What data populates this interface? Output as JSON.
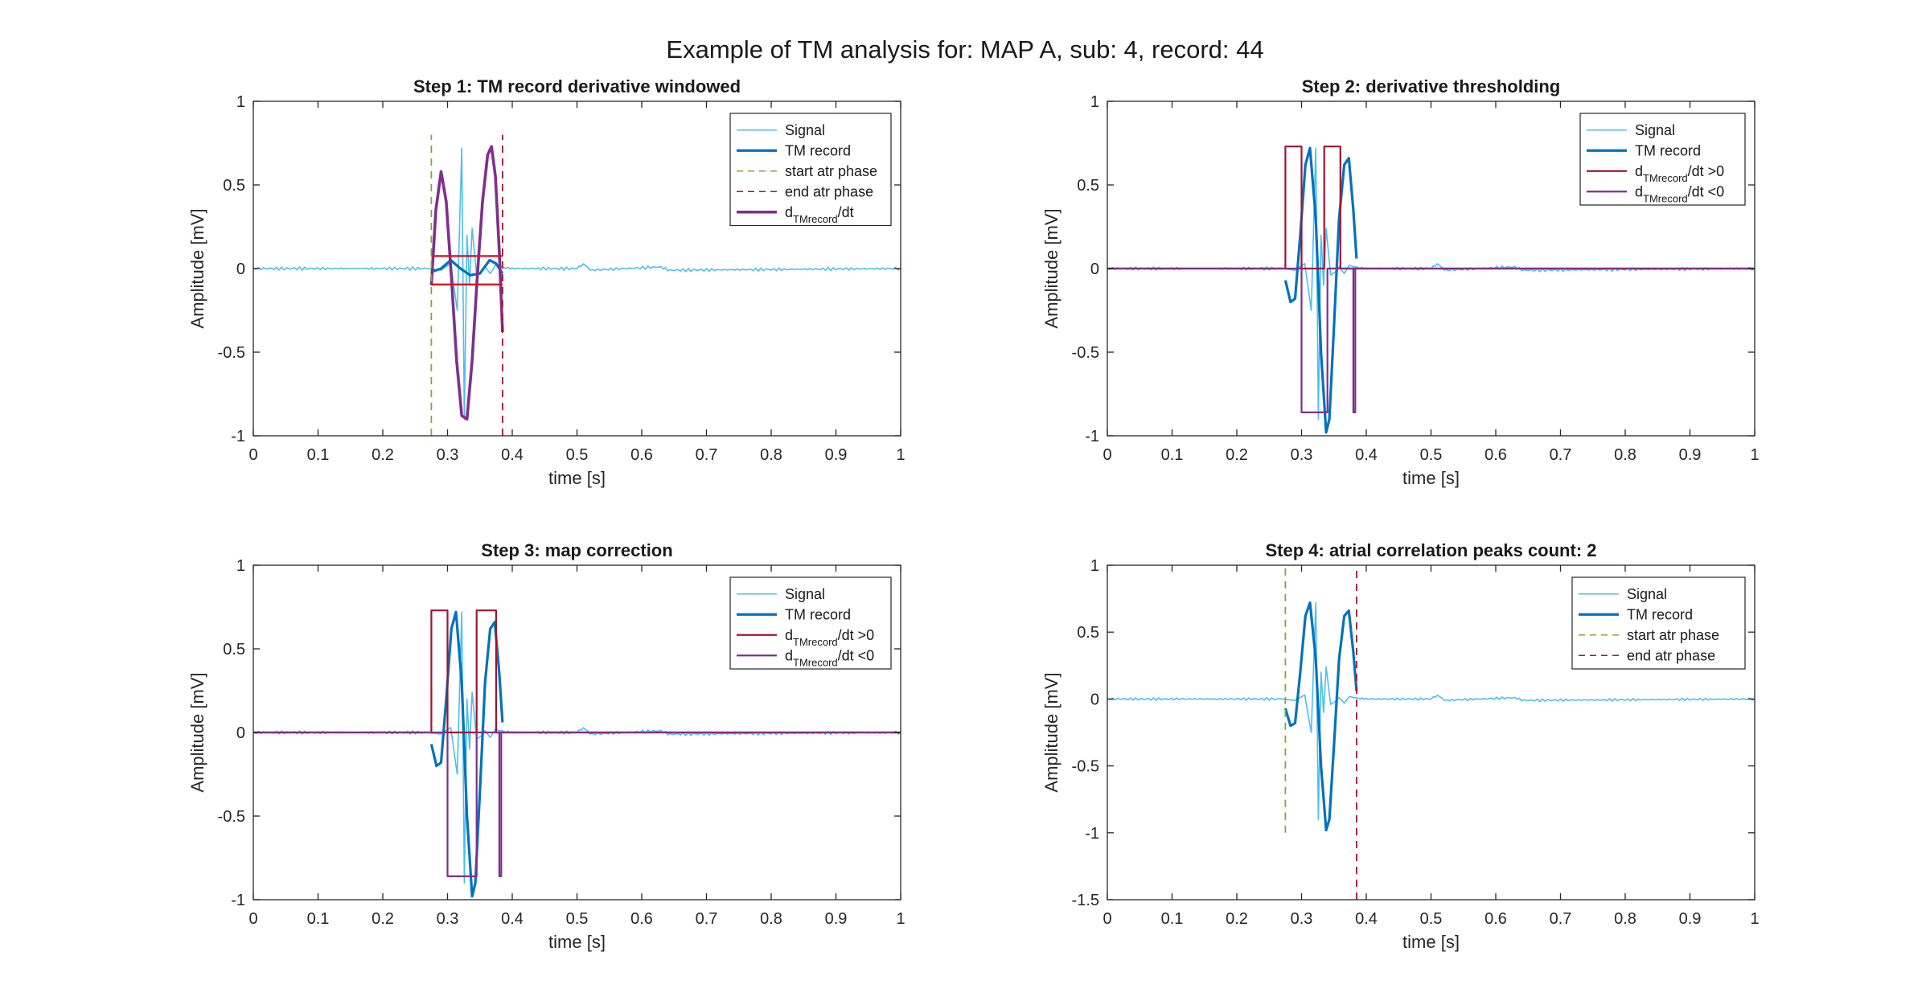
{
  "suptitle": "Example of TM analysis for: MAP A, sub: 4, record: 44",
  "colors": {
    "signal": "#4dbeee",
    "tm_record": "#0072bd",
    "start_atr": "#77ac30",
    "end_atr": "#a2142f",
    "derivative": "#7e2f8e",
    "threshold": "#e01020",
    "positive_mask": "#a2142f",
    "negative_mask": "#7e2f8e"
  },
  "chart_data": [
    {
      "type": "line",
      "title": "Step 1: TM record derivative windowed",
      "xlabel": "time [s]",
      "ylabel": "Amplitude [mV]",
      "xlim": [
        0,
        1
      ],
      "ylim": [
        -1,
        1
      ],
      "xticks": [
        "0",
        "0.1",
        "0.2",
        "0.3",
        "0.4",
        "0.5",
        "0.6",
        "0.7",
        "0.8",
        "0.9",
        "1"
      ],
      "yticks": [
        "-1",
        "-0.5",
        "0",
        "0.5",
        "1"
      ],
      "legend_position": "top-right",
      "legend": [
        "Signal",
        "TM record",
        "start atr phase",
        "end atr phase",
        "d_TMrecord/dt"
      ],
      "series": [
        {
          "name": "Signal",
          "kind": "signal",
          "style": "solid",
          "color_key": "signal",
          "x": [
            0,
            0.27,
            0.29,
            0.305,
            0.315,
            0.322,
            0.326,
            0.33,
            0.334,
            0.338,
            0.345,
            0.352,
            0.358,
            0.366,
            0.374,
            0.38,
            0.385,
            0.39,
            0.4,
            0.5,
            0.51,
            0.52,
            0.63,
            0.64,
            1
          ],
          "y": [
            0,
            0,
            -0.01,
            0.03,
            -0.25,
            0.72,
            -0.9,
            0.2,
            -0.1,
            0.24,
            -0.04,
            -0.02,
            0.01,
            -0.03,
            0.02,
            0.01,
            0.01,
            0,
            0,
            0,
            0.03,
            -0.01,
            0.01,
            -0.01,
            0
          ]
        },
        {
          "name": "TM record",
          "kind": "tm",
          "style": "solid",
          "color_key": "tm_record",
          "x": [
            0.275,
            0.29,
            0.305,
            0.32,
            0.335,
            0.35,
            0.365,
            0.375,
            0.385
          ],
          "y": [
            -0.02,
            0.0,
            0.05,
            0.0,
            -0.04,
            -0.03,
            0.05,
            0.03,
            -0.03
          ]
        },
        {
          "name": "start atr phase",
          "kind": "vline",
          "style": "dashed",
          "color_key": "start_atr",
          "x": 0.275,
          "y": [
            -1,
            0.8
          ]
        },
        {
          "name": "end atr phase",
          "kind": "vline",
          "style": "dashed",
          "color_key": "end_atr",
          "x": 0.385,
          "y": [
            -1,
            0.8
          ]
        },
        {
          "name": "d_TMrecord/dt",
          "kind": "derivative",
          "style": "solid",
          "color_key": "derivative",
          "x": [
            0.275,
            0.282,
            0.29,
            0.298,
            0.306,
            0.314,
            0.322,
            0.33,
            0.338,
            0.346,
            0.354,
            0.362,
            0.368,
            0.374,
            0.38,
            0.385
          ],
          "y": [
            -0.1,
            0.35,
            0.58,
            0.4,
            -0.05,
            -0.55,
            -0.88,
            -0.9,
            -0.55,
            -0.05,
            0.4,
            0.68,
            0.73,
            0.55,
            0.1,
            -0.38
          ]
        },
        {
          "name": "",
          "kind": "threshold",
          "style": "solid",
          "color_key": "threshold",
          "x": [
            0.275,
            0.385
          ],
          "y": [
            0.075,
            0.075
          ]
        },
        {
          "name": "",
          "kind": "threshold",
          "style": "solid",
          "color_key": "threshold",
          "x": [
            0.275,
            0.385
          ],
          "y": [
            -0.095,
            -0.095
          ]
        }
      ]
    },
    {
      "type": "line",
      "title": "Step 2: derivative thresholding",
      "xlabel": "time [s]",
      "ylabel": "Amplitude [mV]",
      "xlim": [
        0,
        1
      ],
      "ylim": [
        -1,
        1
      ],
      "xticks": [
        "0",
        "0.1",
        "0.2",
        "0.3",
        "0.4",
        "0.5",
        "0.6",
        "0.7",
        "0.8",
        "0.9",
        "1"
      ],
      "yticks": [
        "-1",
        "-0.5",
        "0",
        "0.5",
        "1"
      ],
      "legend_position": "top-right",
      "legend": [
        "Signal",
        "TM record",
        "d_TMrecord/dt >0",
        "d_TMrecord/dt <0"
      ],
      "series": [
        {
          "name": "Signal",
          "kind": "signal",
          "style": "solid",
          "color_key": "signal",
          "x": [
            0,
            0.27,
            0.29,
            0.305,
            0.315,
            0.322,
            0.326,
            0.33,
            0.334,
            0.338,
            0.345,
            0.352,
            0.358,
            0.366,
            0.374,
            0.38,
            0.385,
            0.39,
            0.4,
            0.5,
            0.51,
            0.52,
            0.63,
            0.64,
            1
          ],
          "y": [
            0,
            0,
            -0.01,
            0.03,
            -0.25,
            0.72,
            -0.9,
            0.2,
            -0.1,
            0.24,
            -0.04,
            -0.02,
            0.01,
            -0.03,
            0.02,
            0.01,
            0.01,
            0,
            0,
            0,
            0.03,
            -0.01,
            0.01,
            -0.01,
            0
          ]
        },
        {
          "name": "TM record",
          "kind": "tm",
          "style": "solid",
          "color_key": "tm_record",
          "x": [
            0.275,
            0.283,
            0.29,
            0.298,
            0.306,
            0.313,
            0.322,
            0.33,
            0.338,
            0.343,
            0.35,
            0.358,
            0.366,
            0.373,
            0.38,
            0.385
          ],
          "y": [
            -0.07,
            -0.2,
            -0.18,
            0.2,
            0.62,
            0.72,
            0.3,
            -0.5,
            -0.98,
            -0.9,
            -0.35,
            0.3,
            0.62,
            0.66,
            0.35,
            0.06
          ]
        },
        {
          "name": "d_TMrecord/dt >0",
          "kind": "mask",
          "style": "solid",
          "color_key": "positive_mask",
          "x": [
            0,
            0.275,
            0.275,
            0.3,
            0.3,
            0.335,
            0.335,
            0.36,
            0.36,
            0.385,
            0.385,
            1
          ],
          "y": [
            0,
            0,
            0.73,
            0.73,
            0,
            0,
            0.73,
            0.73,
            0,
            0,
            0,
            0
          ]
        },
        {
          "name": "d_TMrecord/dt <0",
          "kind": "mask",
          "style": "solid",
          "color_key": "negative_mask",
          "x": [
            0,
            0.3,
            0.3,
            0.34,
            0.34,
            0.38,
            0.38,
            0.383,
            0.383,
            1
          ],
          "y": [
            0,
            0,
            -0.86,
            -0.86,
            0,
            0,
            -0.86,
            -0.86,
            0,
            0
          ]
        }
      ]
    },
    {
      "type": "line",
      "title": "Step 3: map correction",
      "xlabel": "time [s]",
      "ylabel": "Amplitude [mV]",
      "xlim": [
        0,
        1
      ],
      "ylim": [
        -1,
        1
      ],
      "xticks": [
        "0",
        "0.1",
        "0.2",
        "0.3",
        "0.4",
        "0.5",
        "0.6",
        "0.7",
        "0.8",
        "0.9",
        "1"
      ],
      "yticks": [
        "-1",
        "-0.5",
        "0",
        "0.5",
        "1"
      ],
      "legend_position": "top-right",
      "legend": [
        "Signal",
        "TM record",
        "d_TMrecord/dt >0",
        "d_TMrecord/dt <0"
      ],
      "series": [
        {
          "name": "Signal",
          "kind": "signal",
          "style": "solid",
          "color_key": "signal",
          "x": [
            0,
            0.27,
            0.29,
            0.305,
            0.315,
            0.322,
            0.326,
            0.33,
            0.334,
            0.338,
            0.345,
            0.352,
            0.358,
            0.366,
            0.374,
            0.38,
            0.385,
            0.39,
            0.4,
            0.5,
            0.51,
            0.52,
            0.63,
            0.64,
            1
          ],
          "y": [
            0,
            0,
            -0.01,
            0.03,
            -0.25,
            0.72,
            -0.9,
            0.2,
            -0.1,
            0.24,
            -0.04,
            -0.02,
            0.01,
            -0.03,
            0.02,
            0.01,
            0.01,
            0,
            0,
            0,
            0.03,
            -0.01,
            0.01,
            -0.01,
            0
          ]
        },
        {
          "name": "TM record",
          "kind": "tm",
          "style": "solid",
          "color_key": "tm_record",
          "x": [
            0.275,
            0.283,
            0.29,
            0.298,
            0.306,
            0.313,
            0.322,
            0.33,
            0.338,
            0.343,
            0.35,
            0.358,
            0.366,
            0.373,
            0.38,
            0.385
          ],
          "y": [
            -0.07,
            -0.2,
            -0.18,
            0.2,
            0.62,
            0.72,
            0.3,
            -0.5,
            -0.98,
            -0.9,
            -0.35,
            0.3,
            0.62,
            0.66,
            0.35,
            0.06
          ]
        },
        {
          "name": "d_TMrecord/dt >0",
          "kind": "mask",
          "style": "solid",
          "color_key": "positive_mask",
          "x": [
            0,
            0.275,
            0.275,
            0.3,
            0.3,
            0.345,
            0.345,
            0.375,
            0.375,
            1
          ],
          "y": [
            0,
            0,
            0.73,
            0.73,
            0,
            0,
            0.73,
            0.73,
            0,
            0
          ]
        },
        {
          "name": "d_TMrecord/dt <0",
          "kind": "mask",
          "style": "solid",
          "color_key": "negative_mask",
          "x": [
            0,
            0.3,
            0.3,
            0.345,
            0.345,
            0.38,
            0.38,
            0.383,
            0.383,
            1
          ],
          "y": [
            0,
            0,
            -0.86,
            -0.86,
            0,
            0,
            -0.86,
            -0.86,
            0,
            0
          ]
        }
      ]
    },
    {
      "type": "line",
      "title": "Step 4: atrial correlation peaks count: 2",
      "xlabel": "time [s]",
      "ylabel": "Amplitude [mV]",
      "xlim": [
        0,
        1
      ],
      "ylim": [
        -1.5,
        1
      ],
      "xticks": [
        "0",
        "0.1",
        "0.2",
        "0.3",
        "0.4",
        "0.5",
        "0.6",
        "0.7",
        "0.8",
        "0.9",
        "1"
      ],
      "yticks": [
        "-1.5",
        "-1",
        "-0.5",
        "0",
        "0.5",
        "1"
      ],
      "legend_position": "top-right",
      "legend": [
        "Signal",
        "TM record",
        "start atr phase",
        "end atr phase"
      ],
      "series": [
        {
          "name": "Signal",
          "kind": "signal",
          "style": "solid",
          "color_key": "signal",
          "x": [
            0,
            0.27,
            0.29,
            0.305,
            0.315,
            0.322,
            0.326,
            0.33,
            0.334,
            0.338,
            0.345,
            0.352,
            0.358,
            0.366,
            0.374,
            0.38,
            0.385,
            0.39,
            0.4,
            0.5,
            0.51,
            0.52,
            0.63,
            0.64,
            1
          ],
          "y": [
            0,
            0,
            -0.01,
            0.03,
            -0.25,
            0.72,
            -0.9,
            0.2,
            -0.1,
            0.24,
            -0.04,
            -0.02,
            0.01,
            -0.03,
            0.02,
            0.01,
            0.01,
            0,
            0,
            0,
            0.03,
            -0.01,
            0.01,
            -0.01,
            0
          ]
        },
        {
          "name": "TM record",
          "kind": "tm",
          "style": "solid",
          "color_key": "tm_record",
          "x": [
            0.275,
            0.283,
            0.29,
            0.298,
            0.306,
            0.313,
            0.322,
            0.33,
            0.338,
            0.343,
            0.35,
            0.358,
            0.366,
            0.373,
            0.38,
            0.385
          ],
          "y": [
            -0.07,
            -0.2,
            -0.18,
            0.2,
            0.62,
            0.72,
            0.3,
            -0.5,
            -0.98,
            -0.9,
            -0.35,
            0.3,
            0.62,
            0.66,
            0.35,
            0.06
          ]
        },
        {
          "name": "start atr phase",
          "kind": "vline",
          "style": "dashed",
          "color_key": "start_atr",
          "x": 0.275,
          "y": [
            -1,
            1
          ]
        },
        {
          "name": "end atr phase",
          "kind": "vline",
          "style": "dashed",
          "color_key": "end_atr",
          "x": 0.385,
          "y": [
            -1.5,
            1
          ]
        }
      ]
    }
  ]
}
